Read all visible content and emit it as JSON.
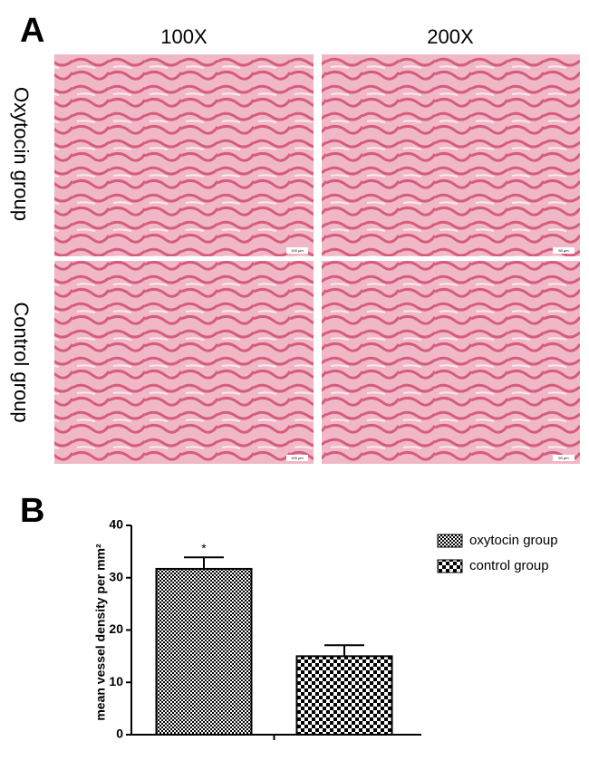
{
  "figure": {
    "label_a": "A",
    "columns": [
      "100X",
      "200X"
    ],
    "rows": [
      "Oxytocin group",
      "Control group"
    ],
    "scale_bars": [
      "100 μm",
      "50 μm"
    ],
    "label_b": "B"
  },
  "chart_data": {
    "type": "bar",
    "ylabel": "mean vessel density per mm²",
    "annotation": "*",
    "categories": [
      null
    ],
    "series": [
      {
        "name": "oxytocin group",
        "color": "#000000",
        "pattern": "fine-checker",
        "values": [
          31.7
        ],
        "errors": [
          2.2
        ]
      },
      {
        "name": "control group",
        "color": "#000000",
        "pattern": "coarse-checker",
        "values": [
          15.0
        ],
        "errors": [
          2.1
        ]
      }
    ],
    "ylim": [
      0,
      40
    ],
    "yticks": [
      0,
      10,
      20,
      30,
      40
    ],
    "grid": false,
    "legend": "upper right"
  }
}
